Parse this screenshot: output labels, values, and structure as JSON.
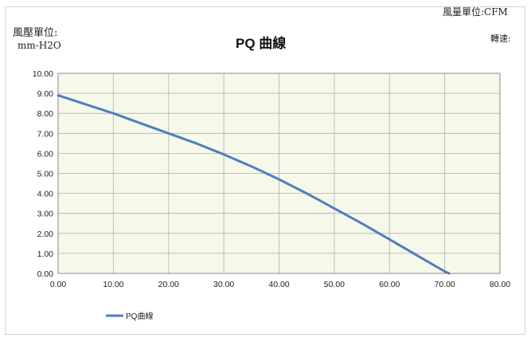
{
  "header": {
    "y_unit_label": "風壓單位:",
    "y_unit_value": "mm-H2O",
    "x_unit": "風量單位:CFM",
    "speed_label": "轉速:"
  },
  "chart_data": {
    "type": "line",
    "title": "PQ 曲線",
    "xlabel": "",
    "ylabel": "",
    "xlim": [
      0,
      80
    ],
    "ylim": [
      0,
      10
    ],
    "x_ticks": [
      "0.00",
      "10.00",
      "20.00",
      "30.00",
      "40.00",
      "50.00",
      "60.00",
      "70.00",
      "80.00"
    ],
    "y_ticks": [
      "0.00",
      "1.00",
      "2.00",
      "3.00",
      "4.00",
      "5.00",
      "6.00",
      "7.00",
      "8.00",
      "9.00",
      "10.00"
    ],
    "grid": true,
    "legend_position": "bottom-left",
    "colors": {
      "line": "#4f7fbf",
      "plot_background": "#f6f8ea",
      "grid": "#b0b0b0"
    },
    "series": [
      {
        "name": "PQ曲線",
        "x": [
          0,
          5,
          10,
          15,
          20,
          25,
          30,
          35,
          40,
          45,
          50,
          55,
          60,
          65,
          70,
          70.8
        ],
        "y": [
          8.9,
          8.45,
          8.0,
          7.5,
          7.0,
          6.5,
          5.95,
          5.35,
          4.7,
          4.0,
          3.25,
          2.5,
          1.7,
          0.9,
          0.1,
          0.0
        ]
      }
    ]
  }
}
